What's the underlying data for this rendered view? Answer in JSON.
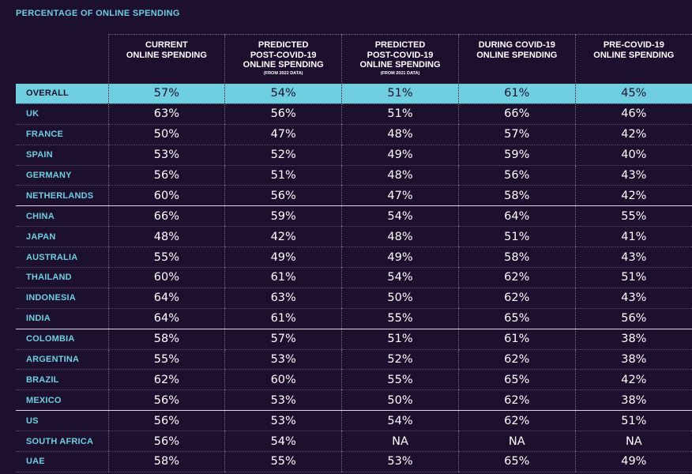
{
  "title": "PERCENTAGE OF ONLINE SPENDING",
  "columns": [
    {
      "lines": [
        "CURRENT",
        "ONLINE SPENDING"
      ],
      "note": ""
    },
    {
      "lines": [
        "PREDICTED",
        "POST-COVID-19",
        "ONLINE SPENDING"
      ],
      "note": "(FROM 2022 DATA)"
    },
    {
      "lines": [
        "PREDICTED",
        "POST-COVID-19",
        "ONLINE SPENDING"
      ],
      "note": "(FROM 2021 DATA)"
    },
    {
      "lines": [
        "DURING COVID-19",
        "ONLINE SPENDING"
      ],
      "note": ""
    },
    {
      "lines": [
        "PRE-COVID-19",
        "ONLINE SPENDING"
      ],
      "note": ""
    }
  ],
  "rows": [
    {
      "label": "OVERALL",
      "values": [
        "57%",
        "54%",
        "51%",
        "61%",
        "45%"
      ],
      "highlight": true
    },
    {
      "label": "UK",
      "values": [
        "63%",
        "56%",
        "51%",
        "66%",
        "46%"
      ]
    },
    {
      "label": "FRANCE",
      "values": [
        "50%",
        "47%",
        "48%",
        "57%",
        "42%"
      ]
    },
    {
      "label": "SPAIN",
      "values": [
        "53%",
        "52%",
        "49%",
        "59%",
        "40%"
      ]
    },
    {
      "label": "GERMANY",
      "values": [
        "56%",
        "51%",
        "48%",
        "56%",
        "43%"
      ]
    },
    {
      "label": "NETHERLANDS",
      "values": [
        "60%",
        "56%",
        "47%",
        "58%",
        "42%"
      ]
    },
    {
      "label": "CHINA",
      "values": [
        "66%",
        "59%",
        "54%",
        "64%",
        "55%"
      ],
      "group_start": true
    },
    {
      "label": "JAPAN",
      "values": [
        "48%",
        "42%",
        "48%",
        "51%",
        "41%"
      ]
    },
    {
      "label": "AUSTRALIA",
      "values": [
        "55%",
        "49%",
        "49%",
        "58%",
        "43%"
      ]
    },
    {
      "label": "THAILAND",
      "values": [
        "60%",
        "61%",
        "54%",
        "62%",
        "51%"
      ]
    },
    {
      "label": "INDONESIA",
      "values": [
        "64%",
        "63%",
        "50%",
        "62%",
        "43%"
      ]
    },
    {
      "label": "INDIA",
      "values": [
        "64%",
        "61%",
        "55%",
        "65%",
        "56%"
      ]
    },
    {
      "label": "COLOMBIA",
      "values": [
        "58%",
        "57%",
        "51%",
        "61%",
        "38%"
      ],
      "group_start": true
    },
    {
      "label": "ARGENTINA",
      "values": [
        "55%",
        "53%",
        "52%",
        "62%",
        "38%"
      ]
    },
    {
      "label": "BRAZIL",
      "values": [
        "62%",
        "60%",
        "55%",
        "65%",
        "42%"
      ]
    },
    {
      "label": "MEXICO",
      "values": [
        "56%",
        "53%",
        "50%",
        "62%",
        "38%"
      ]
    },
    {
      "label": "US",
      "values": [
        "56%",
        "53%",
        "54%",
        "62%",
        "51%"
      ],
      "group_start": true
    },
    {
      "label": "SOUTH AFRICA",
      "values": [
        "56%",
        "54%",
        "NA",
        "NA",
        "NA"
      ]
    },
    {
      "label": "UAE",
      "values": [
        "58%",
        "55%",
        "53%",
        "65%",
        "49%"
      ]
    }
  ],
  "colors": {
    "background": "#1d0f2e",
    "accent": "#6fcfe0",
    "text": "#ffffff"
  }
}
